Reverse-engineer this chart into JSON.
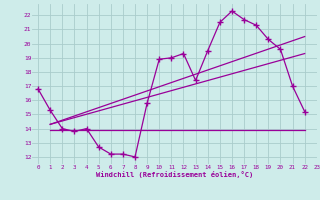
{
  "xlabel": "Windchill (Refroidissement éolien,°C)",
  "bg_color": "#ceecea",
  "grid_color": "#aacccc",
  "line_color": "#990099",
  "xlim": [
    -0.5,
    23
  ],
  "ylim": [
    11.5,
    22.8
  ],
  "xticks": [
    0,
    1,
    2,
    3,
    4,
    5,
    6,
    7,
    8,
    9,
    10,
    11,
    12,
    13,
    14,
    15,
    16,
    17,
    18,
    19,
    20,
    21,
    22,
    23
  ],
  "yticks": [
    12,
    13,
    14,
    15,
    16,
    17,
    18,
    19,
    20,
    21,
    22
  ],
  "main_x": [
    0,
    1,
    2,
    3,
    4,
    5,
    6,
    7,
    8,
    9,
    10,
    11,
    12,
    13,
    14,
    15,
    16,
    17,
    18,
    19,
    20,
    21,
    22
  ],
  "main_y": [
    16.8,
    15.3,
    14.0,
    13.8,
    14.0,
    12.7,
    12.2,
    12.2,
    12.0,
    15.8,
    18.9,
    19.0,
    19.3,
    17.4,
    19.5,
    21.5,
    22.3,
    21.7,
    21.3,
    20.3,
    19.6,
    17.0,
    15.2
  ],
  "line1_x": [
    1,
    22
  ],
  "line1_y": [
    14.3,
    20.5
  ],
  "line2_x": [
    1,
    22
  ],
  "line2_y": [
    14.3,
    19.3
  ],
  "line3_x": [
    1,
    22
  ],
  "line3_y": [
    13.9,
    13.9
  ]
}
